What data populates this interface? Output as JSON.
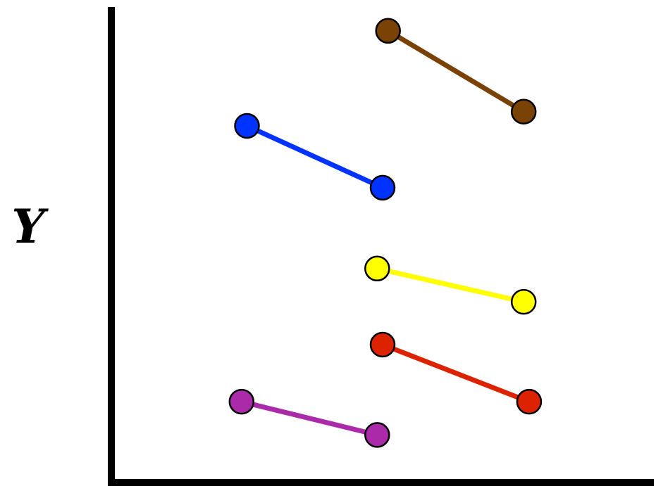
{
  "chart_data": {
    "type": "line",
    "title": "",
    "xlabel": "",
    "ylabel": "Y",
    "xlim": [
      0,
      10
    ],
    "ylim": [
      0,
      10
    ],
    "grid": false,
    "legend": "none",
    "series": [
      {
        "color": "#7a4205",
        "points": [
          [
            5.1,
            9.5
          ],
          [
            7.6,
            7.8
          ]
        ]
      },
      {
        "color": "#0033ff",
        "points": [
          [
            2.5,
            7.5
          ],
          [
            5.0,
            6.2
          ]
        ]
      },
      {
        "color": "#ffff00",
        "points": [
          [
            4.9,
            4.5
          ],
          [
            7.6,
            3.8
          ]
        ]
      },
      {
        "color": "#dd2200",
        "points": [
          [
            5.0,
            2.9
          ],
          [
            7.7,
            1.7
          ]
        ]
      },
      {
        "color": "#aa2aaa",
        "points": [
          [
            2.4,
            1.7
          ],
          [
            4.9,
            1.0
          ]
        ]
      }
    ]
  }
}
